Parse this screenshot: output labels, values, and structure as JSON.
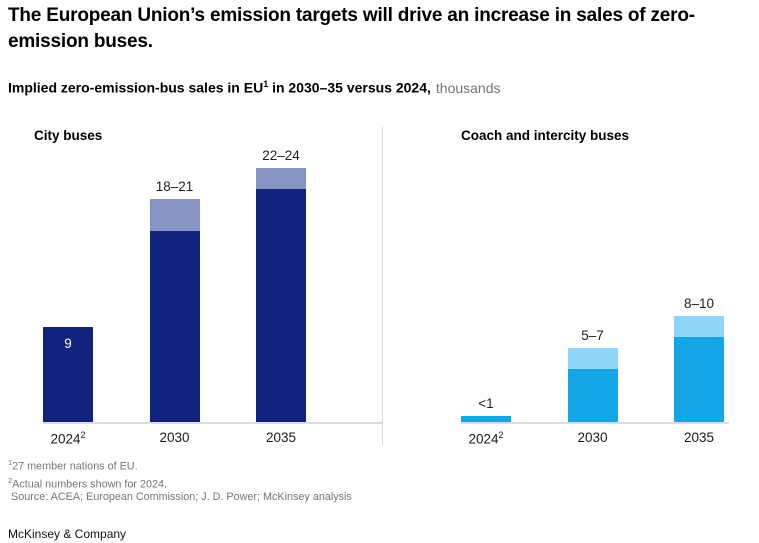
{
  "header": {
    "title": "The European Union’s emission targets will drive an increase in sales of zero-emission buses.",
    "subtitle": {
      "bold_1": "Implied zero-emission-bus sales in EU",
      "footnote_ref": "1",
      "bold_2": " in 2030–35 versus 2024,",
      "unit": "thousands"
    }
  },
  "chart_data": [
    {
      "type": "bar",
      "stacked": true,
      "title": "City buses",
      "categories": [
        "2024",
        "2030",
        "2035"
      ],
      "category_footnote_refs": [
        "2",
        "",
        ""
      ],
      "series": [
        {
          "name": "base-estimate",
          "color": "#12237e",
          "values": [
            9,
            18,
            22
          ]
        },
        {
          "name": "upper-range",
          "color": "#8793c3",
          "values": [
            0,
            3,
            2
          ]
        }
      ],
      "bar_labels": [
        "9",
        "18–21",
        "22–24"
      ],
      "bar_label_placement": [
        "inside",
        "above",
        "above"
      ],
      "unit": "thousands",
      "ylim": [
        0,
        25
      ],
      "grid": false,
      "legend": "none"
    },
    {
      "type": "bar",
      "stacked": true,
      "title": "Coach and intercity buses",
      "categories": [
        "2024",
        "2030",
        "2035"
      ],
      "category_footnote_refs": [
        "2",
        "",
        ""
      ],
      "series": [
        {
          "name": "base-estimate",
          "color": "#14a5e6",
          "values": [
            0.6,
            5,
            8
          ]
        },
        {
          "name": "upper-range",
          "color": "#8ed5f6",
          "values": [
            0,
            2,
            2
          ]
        }
      ],
      "bar_labels": [
        "<1",
        "5–7",
        "8–10"
      ],
      "bar_label_placement": [
        "above",
        "above",
        "above"
      ],
      "unit": "thousands",
      "ylim": [
        0,
        25
      ],
      "grid": false,
      "legend": "none"
    }
  ],
  "footnotes": [
    {
      "ref": "1",
      "text": "27 member nations of EU."
    },
    {
      "ref": "2",
      "text": "Actual numbers shown for 2024."
    }
  ],
  "source": "Source: ACEA; European Commission; J. D. Power; McKinsey analysis",
  "footer": {
    "brand": "McKinsey & Company"
  }
}
